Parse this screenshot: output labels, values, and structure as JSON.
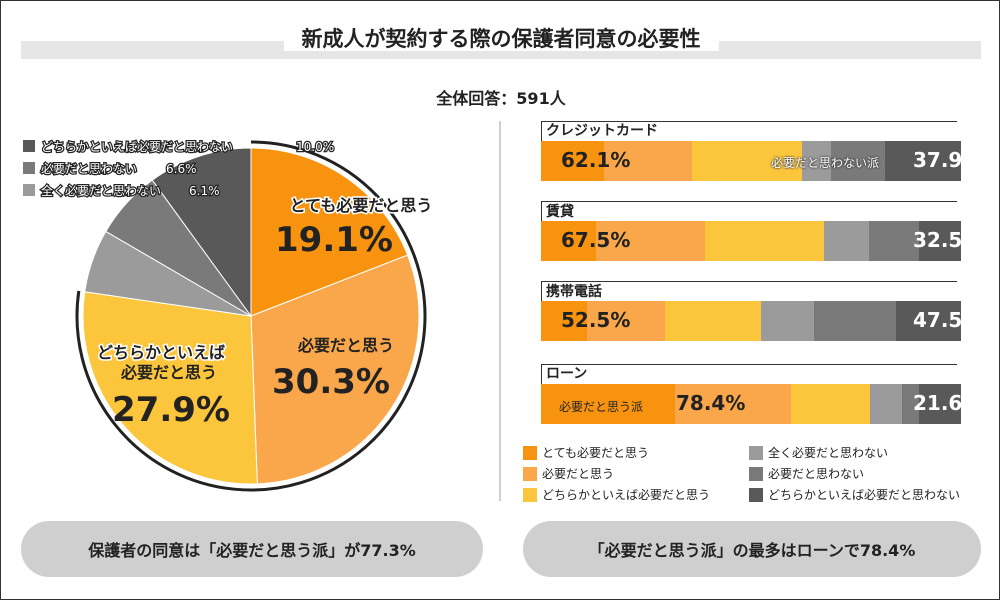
{
  "title": "新成人が契約する際の保護者同意の必要性",
  "respondents": "全体回答：591人",
  "colors": {
    "very_necessary": "#f7930e",
    "necessary": "#f9a74a",
    "somewhat_necessary": "#fcc63c",
    "not_at_all": "#9b9b9b",
    "not_necessary": "#7a7a7a",
    "somewhat_not": "#595959"
  },
  "chart_data": [
    {
      "type": "pie",
      "title": "全体回答：591人",
      "slices": [
        {
          "label": "とても必要だと思う",
          "value": 19.1,
          "value_text": "19.1%"
        },
        {
          "label": "必要だと思う",
          "value": 30.3,
          "value_text": "30.3%"
        },
        {
          "label": "どちらかといえば必要だと思う",
          "value": 27.9,
          "value_text": "27.9%"
        },
        {
          "label": "全く必要だと思わない",
          "value": 6.1,
          "value_text": "6.1%"
        },
        {
          "label": "必要だと思わない",
          "value": 6.6,
          "value_text": "6.6%"
        },
        {
          "label": "どちらかといえば必要だと思わない",
          "value": 10.0,
          "value_text": "10.0%"
        }
      ],
      "pie_labels": {
        "very": "とても必要だと思う",
        "necessary": "必要だと思う",
        "somewhat_line1": "どちらかといえば",
        "somewhat_line2": "必要だと思う"
      },
      "gray_legend": [
        {
          "label": "どちらかといえば必要だと思わない",
          "value_text": "10.0%"
        },
        {
          "label": "必要だと思わない",
          "value_text": "6.6%"
        },
        {
          "label": "全く必要だと思わない",
          "value_text": "6.1%"
        }
      ]
    },
    {
      "type": "bar",
      "orientation": "horizontal-stacked",
      "series_names": [
        "とても必要だと思う",
        "必要だと思う",
        "どちらかといえば必要だと思う",
        "全く必要だと思わない",
        "必要だと思わない",
        "どちらかといえば必要だと思わない"
      ],
      "categories": [
        "クレジットカード",
        "賃貸",
        "携帯電話",
        "ローン"
      ],
      "values": [
        [
          15.0,
          21.0,
          26.1,
          7.0,
          12.9,
          18.0
        ],
        [
          13.0,
          26.0,
          28.5,
          10.5,
          12.0,
          10.0
        ],
        [
          11.0,
          18.5,
          23.0,
          12.5,
          19.5,
          15.5
        ],
        [
          32.0,
          27.5,
          18.9,
          7.5,
          4.0,
          10.1
        ]
      ],
      "agree_totals": [
        "62.1%",
        "67.5%",
        "52.5%",
        "78.4%"
      ],
      "disagree_totals": [
        "37.9",
        "32.5",
        "47.5",
        "21.6"
      ],
      "agree_label": "必要だと思う派",
      "disagree_label": "必要だと思わない派"
    }
  ],
  "summaries": {
    "left": "保護者の同意は「必要だと思う派」が77.3%",
    "right": "「必要だと思う派」の最多はローンで78.4%"
  }
}
